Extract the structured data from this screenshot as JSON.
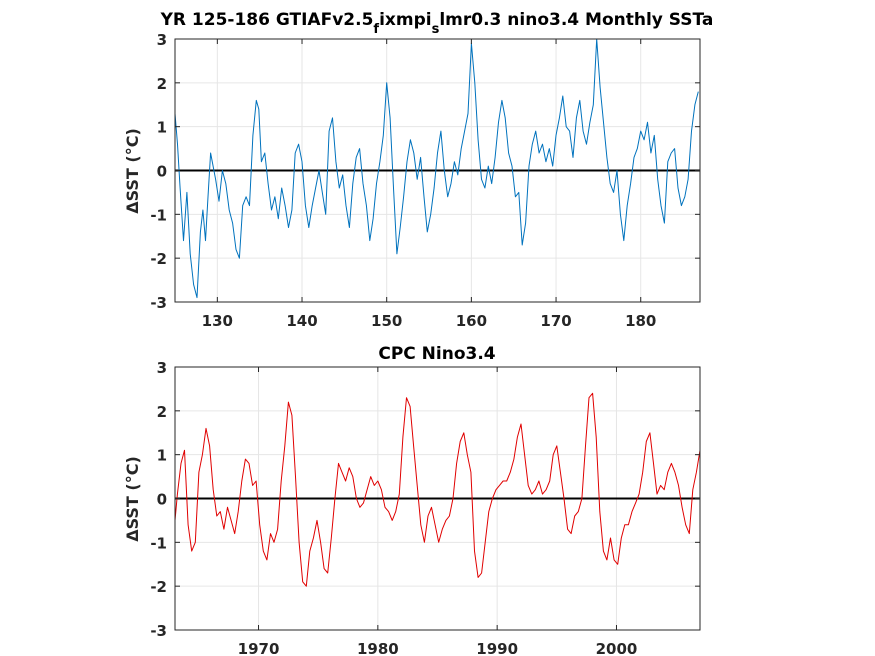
{
  "chart_data": [
    {
      "type": "line",
      "title": "YR 125-186 GTIAFv2.5fixmpislmr0.3 nino3.4 Monthly SSTa",
      "title_parts": [
        {
          "text": "YR 125-186 GTIAFv2.5",
          "sub": false
        },
        {
          "text": "f",
          "sub": true
        },
        {
          "text": "ixmpi",
          "sub": false
        },
        {
          "text": "s",
          "sub": true
        },
        {
          "text": "lmr0.3 nino3.4 Monthly SSTa",
          "sub": false
        }
      ],
      "ylabel": "ΔSST (°C)",
      "xlabel": "",
      "xlim": [
        125,
        187
      ],
      "ylim": [
        -3,
        3
      ],
      "xticks": [
        130,
        140,
        150,
        160,
        170,
        180
      ],
      "yticks": [
        -3,
        -2,
        -1,
        0,
        1,
        2,
        3
      ],
      "grid": true,
      "zero_line": true,
      "series": [
        {
          "color": "#0072bd",
          "x": [
            125.0,
            125.3,
            125.6,
            126.0,
            126.4,
            126.8,
            127.2,
            127.6,
            128.0,
            128.3,
            128.6,
            128.9,
            129.2,
            129.5,
            129.8,
            130.2,
            130.6,
            131.0,
            131.4,
            131.8,
            132.2,
            132.6,
            133.0,
            133.4,
            133.8,
            134.2,
            134.6,
            134.9,
            135.2,
            135.6,
            136.0,
            136.4,
            136.8,
            137.2,
            137.6,
            138.0,
            138.4,
            138.8,
            139.2,
            139.6,
            140.0,
            140.4,
            140.8,
            141.2,
            141.6,
            142.0,
            142.4,
            142.8,
            143.2,
            143.6,
            144.0,
            144.4,
            144.8,
            145.2,
            145.6,
            146.0,
            146.4,
            146.8,
            147.2,
            147.6,
            148.0,
            148.4,
            148.8,
            149.2,
            149.6,
            150.0,
            150.4,
            150.8,
            151.2,
            151.6,
            152.0,
            152.4,
            152.8,
            153.2,
            153.6,
            154.0,
            154.4,
            154.8,
            155.2,
            155.6,
            156.0,
            156.4,
            156.8,
            157.2,
            157.6,
            158.0,
            158.4,
            158.8,
            159.2,
            159.6,
            160.0,
            160.4,
            160.8,
            161.2,
            161.6,
            162.0,
            162.4,
            162.8,
            163.2,
            163.6,
            164.0,
            164.4,
            164.8,
            165.2,
            165.6,
            166.0,
            166.4,
            166.8,
            167.2,
            167.6,
            168.0,
            168.4,
            168.8,
            169.2,
            169.6,
            170.0,
            170.4,
            170.8,
            171.2,
            171.6,
            172.0,
            172.4,
            172.8,
            173.2,
            173.6,
            174.0,
            174.4,
            174.8,
            175.2,
            175.6,
            176.0,
            176.4,
            176.8,
            177.2,
            177.6,
            178.0,
            178.4,
            178.8,
            179.2,
            179.6,
            180.0,
            180.4,
            180.8,
            181.2,
            181.6,
            182.0,
            182.4,
            182.8,
            183.2,
            183.6,
            184.0,
            184.4,
            184.8,
            185.2,
            185.6,
            186.0,
            186.4,
            186.8
          ],
          "y": [
            1.3,
            0.6,
            -0.4,
            -1.6,
            -0.5,
            -1.9,
            -2.6,
            -2.9,
            -1.4,
            -0.9,
            -1.6,
            -0.6,
            0.4,
            0.1,
            -0.2,
            -0.7,
            0.0,
            -0.3,
            -0.9,
            -1.2,
            -1.8,
            -2.0,
            -0.8,
            -0.6,
            -0.8,
            0.8,
            1.6,
            1.4,
            0.2,
            0.4,
            -0.3,
            -0.9,
            -0.6,
            -1.1,
            -0.4,
            -0.8,
            -1.3,
            -0.9,
            0.4,
            0.6,
            0.2,
            -0.8,
            -1.3,
            -0.8,
            -0.4,
            0.0,
            -0.5,
            -1.0,
            0.9,
            1.2,
            0.2,
            -0.4,
            -0.1,
            -0.8,
            -1.3,
            -0.3,
            0.3,
            0.5,
            -0.3,
            -0.8,
            -1.6,
            -1.1,
            -0.3,
            0.2,
            0.8,
            2.0,
            1.2,
            -0.4,
            -1.9,
            -1.3,
            -0.6,
            0.2,
            0.7,
            0.4,
            -0.2,
            0.3,
            -0.6,
            -1.4,
            -1.0,
            -0.4,
            0.4,
            0.9,
            0.0,
            -0.6,
            -0.3,
            0.2,
            -0.1,
            0.5,
            0.9,
            1.3,
            2.9,
            2.0,
            0.7,
            -0.2,
            -0.4,
            0.1,
            -0.3,
            0.3,
            1.1,
            1.6,
            1.2,
            0.4,
            0.1,
            -0.6,
            -0.5,
            -1.7,
            -1.2,
            0.1,
            0.6,
            0.9,
            0.4,
            0.6,
            0.2,
            0.5,
            0.1,
            0.8,
            1.2,
            1.7,
            1.0,
            0.9,
            0.3,
            1.2,
            1.6,
            0.9,
            0.6,
            1.1,
            1.5,
            3.0,
            1.9,
            1.1,
            0.3,
            -0.3,
            -0.5,
            0.0,
            -1.0,
            -1.6,
            -0.8,
            -0.3,
            0.3,
            0.5,
            0.9,
            0.7,
            1.1,
            0.4,
            0.8,
            -0.2,
            -0.8,
            -1.2,
            0.2,
            0.4,
            0.5,
            -0.4,
            -0.8,
            -0.6,
            -0.2,
            0.9,
            1.5,
            1.8
          ]
        }
      ]
    },
    {
      "type": "line",
      "title": "CPC Nino3.4",
      "title_parts": [
        {
          "text": "CPC Nino3.4",
          "sub": false
        }
      ],
      "ylabel": "ΔSST (°C)",
      "xlabel": "",
      "xlim": [
        1963,
        2007
      ],
      "ylim": [
        -3,
        3
      ],
      "xticks": [
        1970,
        1980,
        1990,
        2000
      ],
      "yticks": [
        -3,
        -2,
        -1,
        0,
        1,
        2,
        3
      ],
      "grid": true,
      "zero_line": true,
      "series": [
        {
          "color": "#e00000",
          "x": [
            1963.0,
            1963.2,
            1963.5,
            1963.8,
            1964.1,
            1964.4,
            1964.7,
            1965.0,
            1965.3,
            1965.6,
            1965.9,
            1966.2,
            1966.5,
            1966.8,
            1967.1,
            1967.4,
            1967.7,
            1968.0,
            1968.3,
            1968.6,
            1968.9,
            1969.2,
            1969.5,
            1969.8,
            1970.1,
            1970.4,
            1970.7,
            1971.0,
            1971.3,
            1971.6,
            1971.9,
            1972.2,
            1972.5,
            1972.8,
            1973.1,
            1973.4,
            1973.7,
            1974.0,
            1974.3,
            1974.6,
            1974.9,
            1975.2,
            1975.5,
            1975.8,
            1976.1,
            1976.4,
            1976.7,
            1977.0,
            1977.3,
            1977.6,
            1977.9,
            1978.2,
            1978.5,
            1978.8,
            1979.1,
            1979.4,
            1979.7,
            1980.0,
            1980.3,
            1980.6,
            1980.9,
            1981.2,
            1981.5,
            1981.8,
            1982.1,
            1982.4,
            1982.7,
            1983.0,
            1983.3,
            1983.6,
            1983.9,
            1984.2,
            1984.5,
            1984.8,
            1985.1,
            1985.4,
            1985.7,
            1986.0,
            1986.3,
            1986.6,
            1986.9,
            1987.2,
            1987.5,
            1987.8,
            1988.1,
            1988.4,
            1988.7,
            1989.0,
            1989.3,
            1989.6,
            1989.9,
            1990.2,
            1990.5,
            1990.8,
            1991.1,
            1991.4,
            1991.7,
            1992.0,
            1992.3,
            1992.6,
            1992.9,
            1993.2,
            1993.5,
            1993.8,
            1994.1,
            1994.4,
            1994.7,
            1995.0,
            1995.3,
            1995.6,
            1995.9,
            1996.2,
            1996.5,
            1996.8,
            1997.1,
            1997.4,
            1997.7,
            1998.0,
            1998.3,
            1998.6,
            1998.9,
            1999.2,
            1999.5,
            1999.8,
            2000.1,
            2000.4,
            2000.7,
            2001.0,
            2001.3,
            2001.6,
            2001.9,
            2002.2,
            2002.5,
            2002.8,
            2003.1,
            2003.4,
            2003.7,
            2004.0,
            2004.3,
            2004.6,
            2004.9,
            2005.2,
            2005.5,
            2005.8,
            2006.1,
            2006.4,
            2006.7,
            2007.0
          ],
          "y": [
            -0.5,
            0.1,
            0.8,
            1.1,
            -0.6,
            -1.2,
            -1.0,
            0.6,
            1.0,
            1.6,
            1.2,
            0.2,
            -0.4,
            -0.3,
            -0.7,
            -0.2,
            -0.5,
            -0.8,
            -0.3,
            0.4,
            0.9,
            0.8,
            0.3,
            0.4,
            -0.6,
            -1.2,
            -1.4,
            -0.8,
            -1.0,
            -0.7,
            0.4,
            1.2,
            2.2,
            1.9,
            0.5,
            -1.0,
            -1.9,
            -2.0,
            -1.2,
            -0.9,
            -0.5,
            -1.0,
            -1.6,
            -1.7,
            -0.9,
            0.0,
            0.8,
            0.6,
            0.4,
            0.7,
            0.5,
            0.0,
            -0.2,
            -0.1,
            0.2,
            0.5,
            0.3,
            0.4,
            0.2,
            -0.2,
            -0.3,
            -0.5,
            -0.3,
            0.1,
            1.4,
            2.3,
            2.1,
            1.2,
            0.3,
            -0.6,
            -1.0,
            -0.4,
            -0.2,
            -0.6,
            -1.0,
            -0.7,
            -0.5,
            -0.4,
            0.0,
            0.8,
            1.3,
            1.5,
            1.0,
            0.6,
            -1.2,
            -1.8,
            -1.7,
            -1.0,
            -0.3,
            0.0,
            0.2,
            0.3,
            0.4,
            0.4,
            0.6,
            0.9,
            1.4,
            1.7,
            1.0,
            0.3,
            0.1,
            0.2,
            0.4,
            0.1,
            0.2,
            0.4,
            1.0,
            1.2,
            0.6,
            0.0,
            -0.7,
            -0.8,
            -0.4,
            -0.3,
            0.0,
            1.2,
            2.3,
            2.4,
            1.4,
            -0.3,
            -1.2,
            -1.4,
            -0.9,
            -1.4,
            -1.5,
            -0.9,
            -0.6,
            -0.6,
            -0.3,
            -0.1,
            0.1,
            0.6,
            1.3,
            1.5,
            0.8,
            0.1,
            0.3,
            0.2,
            0.6,
            0.8,
            0.6,
            0.3,
            -0.2,
            -0.6,
            -0.8,
            0.2,
            0.6,
            1.1
          ]
        }
      ]
    }
  ]
}
